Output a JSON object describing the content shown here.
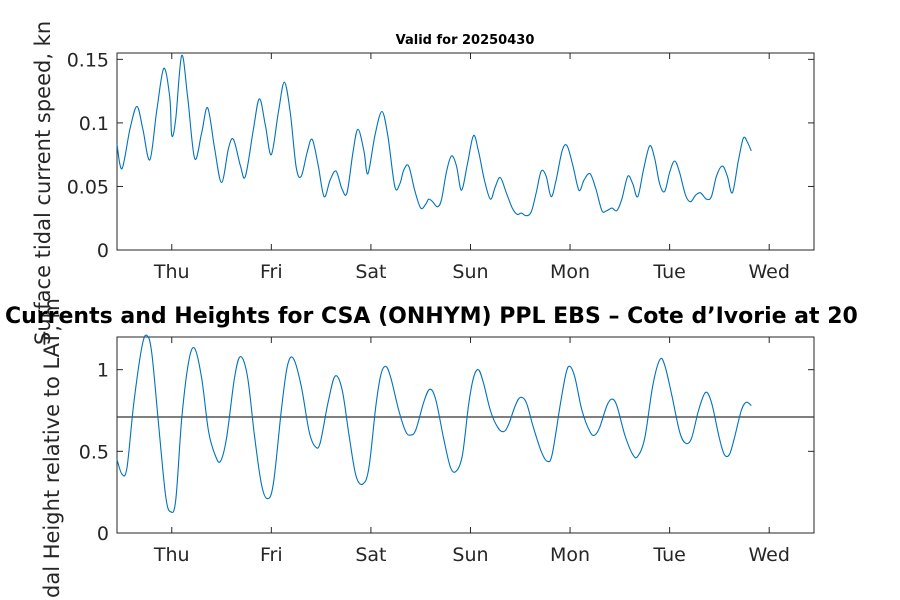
{
  "figure": {
    "main_title": "Currents and Heights for CSA (ONHYM) PPL EBS  – Cote d’Ivorie at 20"
  },
  "chart_data": [
    {
      "type": "line",
      "title": "Valid for 20250430",
      "xlabel": "",
      "ylabel": "Surface tidal current speed, kn",
      "x_tick_labels": [
        "Thu",
        "Fri",
        "Sat",
        "Sun",
        "Mon",
        "Tue",
        "Wed"
      ],
      "y_ticks": [
        0,
        0.05,
        0.1,
        0.15
      ],
      "y_tick_labels": [
        "0",
        "0.05",
        "0.1",
        "0.15"
      ],
      "xlim": [
        -0.55,
        6.45
      ],
      "ylim": [
        0,
        0.155
      ],
      "grid": false,
      "series": [
        {
          "color": "#0072BD",
          "points": [
            [
              -0.55,
              0.083
            ],
            [
              -0.5,
              0.064
            ],
            [
              -0.42,
              0.095
            ],
            [
              -0.35,
              0.113
            ],
            [
              -0.29,
              0.095
            ],
            [
              -0.22,
              0.071
            ],
            [
              -0.15,
              0.11
            ],
            [
              -0.08,
              0.143
            ],
            [
              -0.02,
              0.12
            ],
            [
              0.0,
              0.09
            ],
            [
              0.04,
              0.103
            ],
            [
              0.1,
              0.153
            ],
            [
              0.16,
              0.12
            ],
            [
              0.23,
              0.072
            ],
            [
              0.3,
              0.092
            ],
            [
              0.36,
              0.112
            ],
            [
              0.43,
              0.08
            ],
            [
              0.5,
              0.053
            ],
            [
              0.57,
              0.08
            ],
            [
              0.62,
              0.087
            ],
            [
              0.69,
              0.066
            ],
            [
              0.74,
              0.058
            ],
            [
              0.82,
              0.095
            ],
            [
              0.88,
              0.119
            ],
            [
              0.94,
              0.098
            ],
            [
              1.0,
              0.075
            ],
            [
              1.07,
              0.108
            ],
            [
              1.13,
              0.132
            ],
            [
              1.19,
              0.108
            ],
            [
              1.25,
              0.065
            ],
            [
              1.3,
              0.058
            ],
            [
              1.36,
              0.077
            ],
            [
              1.41,
              0.087
            ],
            [
              1.47,
              0.067
            ],
            [
              1.53,
              0.042
            ],
            [
              1.59,
              0.055
            ],
            [
              1.65,
              0.062
            ],
            [
              1.71,
              0.048
            ],
            [
              1.76,
              0.045
            ],
            [
              1.82,
              0.077
            ],
            [
              1.87,
              0.095
            ],
            [
              1.93,
              0.078
            ],
            [
              1.97,
              0.06
            ],
            [
              2.04,
              0.09
            ],
            [
              2.11,
              0.109
            ],
            [
              2.17,
              0.09
            ],
            [
              2.24,
              0.05
            ],
            [
              2.29,
              0.052
            ],
            [
              2.33,
              0.063
            ],
            [
              2.38,
              0.066
            ],
            [
              2.44,
              0.047
            ],
            [
              2.5,
              0.033
            ],
            [
              2.55,
              0.036
            ],
            [
              2.58,
              0.04
            ],
            [
              2.62,
              0.038
            ],
            [
              2.67,
              0.034
            ],
            [
              2.71,
              0.04
            ],
            [
              2.76,
              0.062
            ],
            [
              2.81,
              0.074
            ],
            [
              2.86,
              0.066
            ],
            [
              2.91,
              0.047
            ],
            [
              2.97,
              0.068
            ],
            [
              3.03,
              0.09
            ],
            [
              3.08,
              0.078
            ],
            [
              3.14,
              0.055
            ],
            [
              3.2,
              0.04
            ],
            [
              3.25,
              0.05
            ],
            [
              3.3,
              0.057
            ],
            [
              3.36,
              0.045
            ],
            [
              3.42,
              0.033
            ],
            [
              3.47,
              0.028
            ],
            [
              3.51,
              0.029
            ],
            [
              3.56,
              0.027
            ],
            [
              3.61,
              0.03
            ],
            [
              3.66,
              0.045
            ],
            [
              3.71,
              0.062
            ],
            [
              3.76,
              0.058
            ],
            [
              3.81,
              0.042
            ],
            [
              3.86,
              0.055
            ],
            [
              3.92,
              0.078
            ],
            [
              3.97,
              0.082
            ],
            [
              4.03,
              0.066
            ],
            [
              4.09,
              0.047
            ],
            [
              4.14,
              0.055
            ],
            [
              4.2,
              0.06
            ],
            [
              4.26,
              0.048
            ],
            [
              4.32,
              0.031
            ],
            [
              4.37,
              0.031
            ],
            [
              4.42,
              0.033
            ],
            [
              4.47,
              0.031
            ],
            [
              4.52,
              0.04
            ],
            [
              4.58,
              0.058
            ],
            [
              4.63,
              0.052
            ],
            [
              4.68,
              0.042
            ],
            [
              4.74,
              0.064
            ],
            [
              4.8,
              0.082
            ],
            [
              4.85,
              0.072
            ],
            [
              4.9,
              0.052
            ],
            [
              4.95,
              0.046
            ],
            [
              5.0,
              0.061
            ],
            [
              5.05,
              0.07
            ],
            [
              5.1,
              0.061
            ],
            [
              5.16,
              0.043
            ],
            [
              5.21,
              0.038
            ],
            [
              5.26,
              0.043
            ],
            [
              5.31,
              0.045
            ],
            [
              5.37,
              0.04
            ],
            [
              5.42,
              0.042
            ],
            [
              5.47,
              0.058
            ],
            [
              5.53,
              0.066
            ],
            [
              5.58,
              0.058
            ],
            [
              5.63,
              0.045
            ],
            [
              5.69,
              0.07
            ],
            [
              5.74,
              0.088
            ],
            [
              5.78,
              0.085
            ],
            [
              5.82,
              0.078
            ]
          ]
        }
      ]
    },
    {
      "type": "line",
      "title": "",
      "xlabel": "",
      "ylabel": "Tidal Height relative to LAT, m",
      "x_tick_labels": [
        "Thu",
        "Fri",
        "Sat",
        "Sun",
        "Mon",
        "Tue",
        "Wed"
      ],
      "y_ticks": [
        0,
        0.5,
        1
      ],
      "y_tick_labels": [
        "0",
        "0.5",
        "1"
      ],
      "xlim": [
        -0.55,
        6.45
      ],
      "ylim": [
        0,
        1.2
      ],
      "grid": false,
      "reference_level": 0.71,
      "reference_color": "#333333",
      "series": [
        {
          "color": "#0072BD",
          "points": [
            [
              -0.55,
              0.45
            ],
            [
              -0.5,
              0.36
            ],
            [
              -0.45,
              0.4
            ],
            [
              -0.38,
              0.8
            ],
            [
              -0.3,
              1.14
            ],
            [
              -0.25,
              1.21
            ],
            [
              -0.2,
              1.1
            ],
            [
              -0.13,
              0.65
            ],
            [
              -0.06,
              0.22
            ],
            [
              -0.01,
              0.13
            ],
            [
              0.04,
              0.2
            ],
            [
              0.1,
              0.7
            ],
            [
              0.17,
              1.05
            ],
            [
              0.23,
              1.13
            ],
            [
              0.3,
              0.95
            ],
            [
              0.37,
              0.62
            ],
            [
              0.44,
              0.47
            ],
            [
              0.49,
              0.44
            ],
            [
              0.55,
              0.58
            ],
            [
              0.63,
              0.95
            ],
            [
              0.69,
              1.08
            ],
            [
              0.76,
              0.96
            ],
            [
              0.83,
              0.6
            ],
            [
              0.9,
              0.3
            ],
            [
              0.96,
              0.21
            ],
            [
              1.02,
              0.3
            ],
            [
              1.1,
              0.75
            ],
            [
              1.16,
              1.02
            ],
            [
              1.22,
              1.07
            ],
            [
              1.3,
              0.9
            ],
            [
              1.38,
              0.62
            ],
            [
              1.44,
              0.53
            ],
            [
              1.49,
              0.55
            ],
            [
              1.57,
              0.8
            ],
            [
              1.64,
              0.96
            ],
            [
              1.71,
              0.88
            ],
            [
              1.78,
              0.6
            ],
            [
              1.85,
              0.35
            ],
            [
              1.92,
              0.3
            ],
            [
              1.98,
              0.4
            ],
            [
              2.05,
              0.78
            ],
            [
              2.1,
              0.97
            ],
            [
              2.15,
              1.02
            ],
            [
              2.2,
              0.95
            ],
            [
              2.28,
              0.75
            ],
            [
              2.35,
              0.62
            ],
            [
              2.4,
              0.6
            ],
            [
              2.45,
              0.63
            ],
            [
              2.53,
              0.8
            ],
            [
              2.59,
              0.88
            ],
            [
              2.65,
              0.82
            ],
            [
              2.73,
              0.58
            ],
            [
              2.8,
              0.4
            ],
            [
              2.86,
              0.38
            ],
            [
              2.92,
              0.48
            ],
            [
              2.98,
              0.78
            ],
            [
              3.03,
              0.95
            ],
            [
              3.08,
              1.0
            ],
            [
              3.13,
              0.92
            ],
            [
              3.2,
              0.75
            ],
            [
              3.27,
              0.65
            ],
            [
              3.33,
              0.62
            ],
            [
              3.38,
              0.66
            ],
            [
              3.45,
              0.78
            ],
            [
              3.5,
              0.83
            ],
            [
              3.56,
              0.8
            ],
            [
              3.63,
              0.65
            ],
            [
              3.71,
              0.5
            ],
            [
              3.77,
              0.44
            ],
            [
              3.82,
              0.48
            ],
            [
              3.9,
              0.78
            ],
            [
              3.96,
              0.98
            ],
            [
              4.0,
              1.02
            ],
            [
              4.05,
              0.95
            ],
            [
              4.12,
              0.75
            ],
            [
              4.2,
              0.62
            ],
            [
              4.25,
              0.6
            ],
            [
              4.3,
              0.65
            ],
            [
              4.37,
              0.78
            ],
            [
              4.42,
              0.82
            ],
            [
              4.47,
              0.78
            ],
            [
              4.55,
              0.6
            ],
            [
              4.63,
              0.48
            ],
            [
              4.68,
              0.47
            ],
            [
              4.75,
              0.58
            ],
            [
              4.83,
              0.9
            ],
            [
              4.9,
              1.06
            ],
            [
              4.95,
              1.03
            ],
            [
              5.02,
              0.85
            ],
            [
              5.1,
              0.62
            ],
            [
              5.16,
              0.55
            ],
            [
              5.22,
              0.58
            ],
            [
              5.29,
              0.75
            ],
            [
              5.36,
              0.86
            ],
            [
              5.42,
              0.8
            ],
            [
              5.5,
              0.58
            ],
            [
              5.55,
              0.48
            ],
            [
              5.6,
              0.48
            ],
            [
              5.65,
              0.58
            ],
            [
              5.72,
              0.75
            ],
            [
              5.77,
              0.8
            ],
            [
              5.82,
              0.78
            ]
          ]
        }
      ]
    }
  ]
}
